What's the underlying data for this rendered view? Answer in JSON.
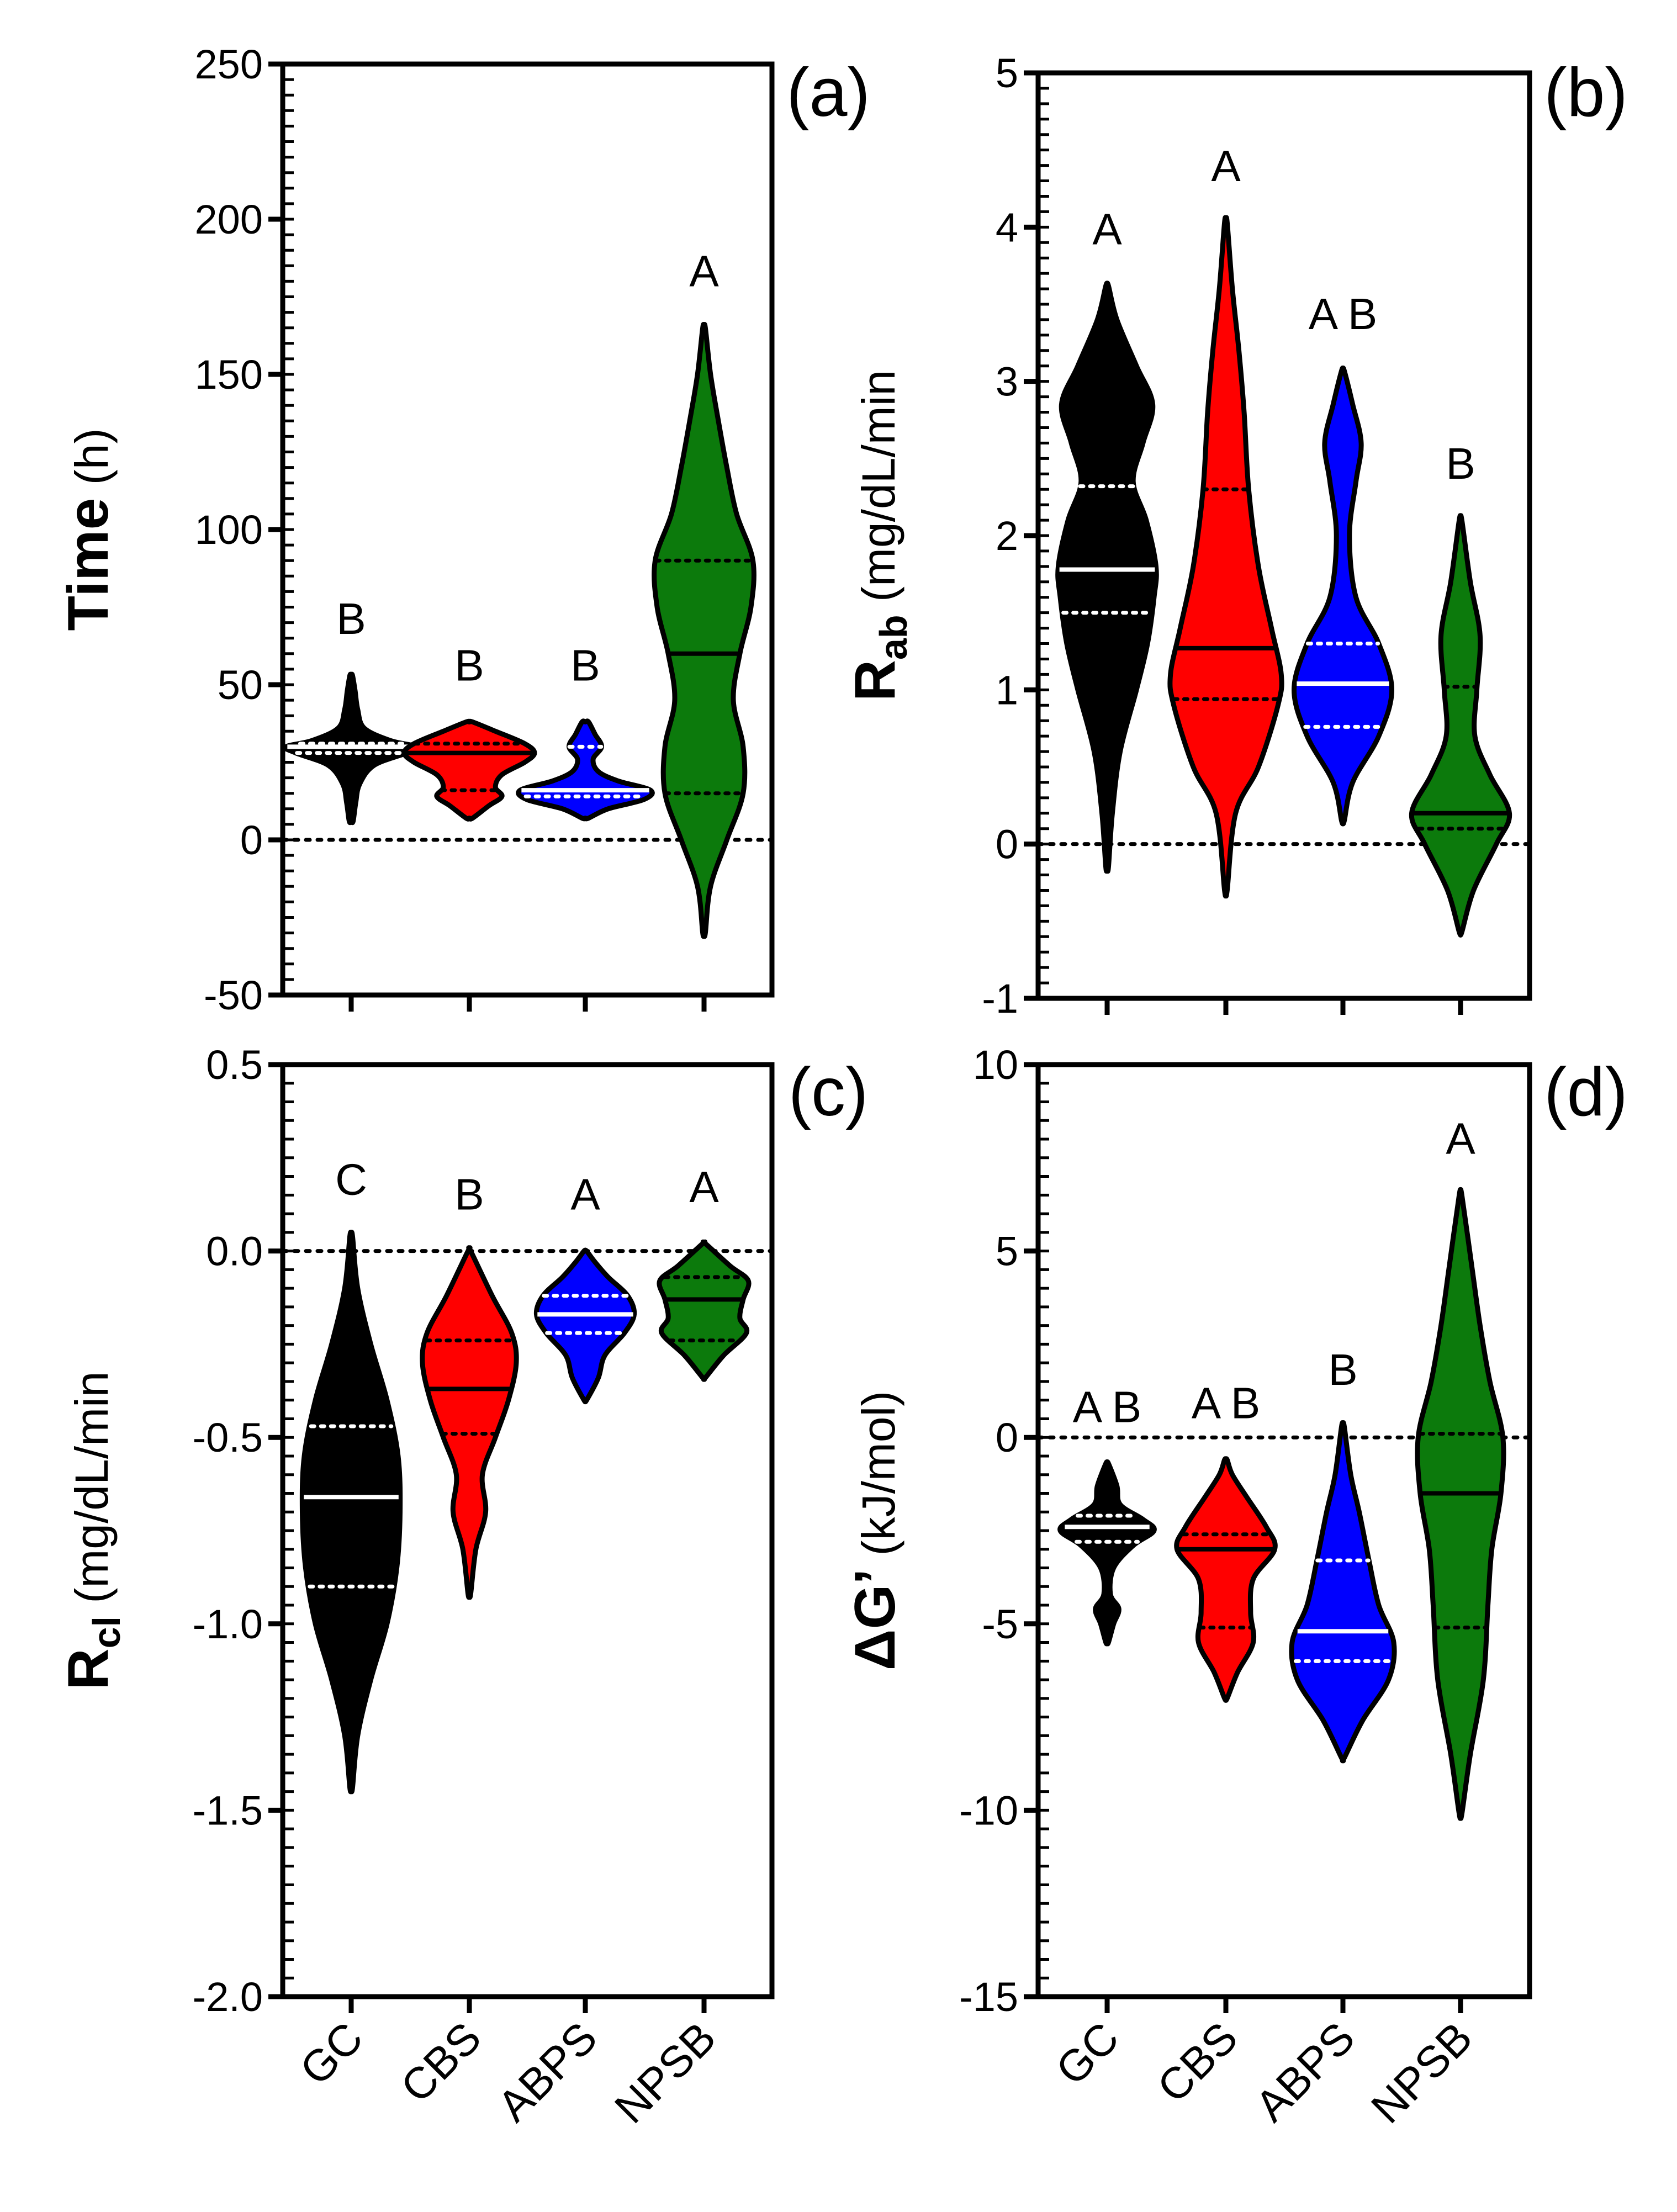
{
  "chart_data": [
    {
      "type": "violin",
      "panel_label": "(a)",
      "ylabel": {
        "main": "Time",
        "sub": "",
        "unit": " (h)"
      },
      "yticks": [
        "250",
        "200",
        "150",
        "100",
        "50",
        "0",
        "-50"
      ],
      "yticks_values": [
        250,
        200,
        150,
        100,
        50,
        0,
        -50
      ],
      "ylim": [
        -50,
        250
      ],
      "categories": [
        "GC",
        "CBS",
        "ABPS",
        "NPSB"
      ],
      "show_category_labels": false,
      "zero_line": true,
      "series": [
        {
          "name": "GC",
          "color": "#000000",
          "min": 6,
          "max": 53,
          "median": 30,
          "q1": 28,
          "q3": 31,
          "letter": "B",
          "profile": [
            [
              6,
              0.03
            ],
            [
              12,
              0.07
            ],
            [
              18,
              0.13
            ],
            [
              24,
              0.35
            ],
            [
              28,
              0.85
            ],
            [
              30,
              1.0
            ],
            [
              32,
              0.6
            ],
            [
              36,
              0.2
            ],
            [
              42,
              0.1
            ],
            [
              48,
              0.06
            ],
            [
              53,
              0.02
            ]
          ]
        },
        {
          "name": "CBS",
          "color": "#ff0000",
          "min": 7,
          "max": 38,
          "median": 28,
          "q1": 16,
          "q3": 31,
          "letter": "B",
          "profile": [
            [
              7,
              0.05
            ],
            [
              11,
              0.3
            ],
            [
              14,
              0.5
            ],
            [
              17,
              0.4
            ],
            [
              21,
              0.5
            ],
            [
              25,
              0.85
            ],
            [
              28,
              1.0
            ],
            [
              31,
              0.85
            ],
            [
              35,
              0.4
            ],
            [
              38,
              0.05
            ]
          ]
        },
        {
          "name": "ABPS",
          "color": "#0000ff",
          "min": 7,
          "max": 38,
          "median": 16,
          "q1": 14,
          "q3": 30,
          "letter": "B",
          "profile": [
            [
              7,
              0.05
            ],
            [
              10,
              0.35
            ],
            [
              13,
              0.9
            ],
            [
              16,
              1.0
            ],
            [
              19,
              0.5
            ],
            [
              22,
              0.2
            ],
            [
              26,
              0.12
            ],
            [
              30,
              0.25
            ],
            [
              34,
              0.15
            ],
            [
              38,
              0.05
            ]
          ]
        },
        {
          "name": "NPSB",
          "color": "#0c7a0c",
          "min": -30,
          "max": 165,
          "median": 60,
          "q1": 15,
          "q3": 90,
          "letter": "A",
          "profile": [
            [
              -30,
              0.02
            ],
            [
              -15,
              0.1
            ],
            [
              0,
              0.35
            ],
            [
              15,
              0.6
            ],
            [
              30,
              0.6
            ],
            [
              45,
              0.45
            ],
            [
              60,
              0.55
            ],
            [
              75,
              0.72
            ],
            [
              90,
              0.75
            ],
            [
              105,
              0.5
            ],
            [
              120,
              0.35
            ],
            [
              135,
              0.22
            ],
            [
              150,
              0.1
            ],
            [
              165,
              0.02
            ]
          ]
        }
      ]
    },
    {
      "type": "violin",
      "panel_label": "(b)",
      "ylabel": {
        "main": "R",
        "sub": "ab",
        "unit": " (mg/dL/min"
      },
      "yticks": [
        "5",
        "4",
        "3",
        "2",
        "1",
        "0",
        "-1"
      ],
      "yticks_values": [
        5,
        4,
        3,
        2,
        1,
        0,
        -1
      ],
      "ylim": [
        -1,
        5
      ],
      "categories": [
        "GC",
        "CBS",
        "ABPS",
        "NPSB"
      ],
      "show_category_labels": true,
      "zero_line": true,
      "series": [
        {
          "name": "GC",
          "color": "#000000",
          "min": -0.15,
          "max": 3.62,
          "median": 1.78,
          "q1": 1.5,
          "q3": 2.32,
          "letter": "A",
          "profile": [
            [
              -0.15,
              0.02
            ],
            [
              0.2,
              0.08
            ],
            [
              0.6,
              0.2
            ],
            [
              1.0,
              0.45
            ],
            [
              1.3,
              0.62
            ],
            [
              1.6,
              0.72
            ],
            [
              1.8,
              0.75
            ],
            [
              2.1,
              0.6
            ],
            [
              2.35,
              0.4
            ],
            [
              2.6,
              0.55
            ],
            [
              2.85,
              0.7
            ],
            [
              3.1,
              0.45
            ],
            [
              3.4,
              0.15
            ],
            [
              3.62,
              0.02
            ]
          ]
        },
        {
          "name": "CBS",
          "color": "#ff0000",
          "min": -0.3,
          "max": 4.03,
          "median": 1.27,
          "q1": 0.94,
          "q3": 2.3,
          "letter": "A",
          "profile": [
            [
              -0.3,
              0.02
            ],
            [
              0.2,
              0.15
            ],
            [
              0.5,
              0.5
            ],
            [
              0.9,
              0.8
            ],
            [
              1.1,
              0.85
            ],
            [
              1.4,
              0.7
            ],
            [
              1.8,
              0.5
            ],
            [
              2.3,
              0.35
            ],
            [
              2.8,
              0.28
            ],
            [
              3.2,
              0.2
            ],
            [
              3.6,
              0.1
            ],
            [
              4.03,
              0.02
            ]
          ]
        },
        {
          "name": "ABPS",
          "color": "#0000ff",
          "min": 0.15,
          "max": 3.07,
          "median": 1.04,
          "q1": 0.76,
          "q3": 1.3,
          "letter": "A B",
          "profile": [
            [
              0.15,
              0.02
            ],
            [
              0.4,
              0.15
            ],
            [
              0.7,
              0.55
            ],
            [
              1.0,
              0.75
            ],
            [
              1.3,
              0.55
            ],
            [
              1.6,
              0.2
            ],
            [
              2.0,
              0.1
            ],
            [
              2.35,
              0.2
            ],
            [
              2.6,
              0.28
            ],
            [
              2.85,
              0.15
            ],
            [
              3.07,
              0.02
            ]
          ]
        },
        {
          "name": "NPSB",
          "color": "#0c7a0c",
          "min": -0.57,
          "max": 2.1,
          "median": 0.2,
          "q1": 0.1,
          "q3": 1.02,
          "letter": "B",
          "profile": [
            [
              -0.57,
              0.02
            ],
            [
              -0.3,
              0.2
            ],
            [
              0,
              0.55
            ],
            [
              0.2,
              0.75
            ],
            [
              0.45,
              0.45
            ],
            [
              0.7,
              0.22
            ],
            [
              1.0,
              0.25
            ],
            [
              1.35,
              0.3
            ],
            [
              1.7,
              0.15
            ],
            [
              2.1,
              0.02
            ]
          ]
        }
      ]
    },
    {
      "type": "violin",
      "panel_label": "(c)",
      "ylabel": {
        "main": "R",
        "sub": "cl",
        "unit": " (mg/dL/min"
      },
      "yticks": [
        "0.5",
        "0.0",
        "-0.5",
        "-1.0",
        "-1.5",
        "-2.0"
      ],
      "yticks_values": [
        0.5,
        0.0,
        -0.5,
        -1.0,
        -1.5,
        -2.0
      ],
      "ylim": [
        -2.0,
        0.5
      ],
      "categories": [
        "GC",
        "CBS",
        "ABPS",
        "NPSB"
      ],
      "show_category_labels": true,
      "zero_line": true,
      "series": [
        {
          "name": "GC",
          "color": "#000000",
          "min": -1.44,
          "max": 0.04,
          "median": -0.66,
          "q1": -0.9,
          "q3": -0.47,
          "letter": "C",
          "profile": [
            [
              -1.44,
              0.02
            ],
            [
              -1.3,
              0.1
            ],
            [
              -1.15,
              0.3
            ],
            [
              -1.0,
              0.55
            ],
            [
              -0.85,
              0.7
            ],
            [
              -0.7,
              0.75
            ],
            [
              -0.55,
              0.72
            ],
            [
              -0.4,
              0.55
            ],
            [
              -0.25,
              0.3
            ],
            [
              -0.1,
              0.1
            ],
            [
              0.04,
              0.02
            ]
          ]
        },
        {
          "name": "CBS",
          "color": "#ff0000",
          "min": -0.92,
          "max": 0.0,
          "median": -0.37,
          "q1": -0.49,
          "q3": -0.24,
          "letter": "B",
          "profile": [
            [
              -0.92,
              0.02
            ],
            [
              -0.8,
              0.1
            ],
            [
              -0.7,
              0.25
            ],
            [
              -0.6,
              0.2
            ],
            [
              -0.5,
              0.4
            ],
            [
              -0.4,
              0.6
            ],
            [
              -0.3,
              0.72
            ],
            [
              -0.22,
              0.65
            ],
            [
              -0.12,
              0.35
            ],
            [
              0.0,
              0.02
            ]
          ]
        },
        {
          "name": "ABPS",
          "color": "#0000ff",
          "min": -0.4,
          "max": 0.0,
          "median": -0.17,
          "q1": -0.22,
          "q3": -0.12,
          "letter": "A",
          "profile": [
            [
              -0.4,
              0.02
            ],
            [
              -0.34,
              0.2
            ],
            [
              -0.28,
              0.3
            ],
            [
              -0.22,
              0.6
            ],
            [
              -0.17,
              0.75
            ],
            [
              -0.12,
              0.65
            ],
            [
              -0.07,
              0.35
            ],
            [
              -0.03,
              0.15
            ],
            [
              0.0,
              0.02
            ]
          ]
        },
        {
          "name": "NPSB",
          "color": "#0c7a0c",
          "min": -0.34,
          "max": 0.02,
          "median": -0.13,
          "q1": -0.24,
          "q3": -0.07,
          "letter": "A",
          "profile": [
            [
              -0.34,
              0.02
            ],
            [
              -0.28,
              0.3
            ],
            [
              -0.22,
              0.65
            ],
            [
              -0.18,
              0.55
            ],
            [
              -0.13,
              0.6
            ],
            [
              -0.08,
              0.68
            ],
            [
              -0.04,
              0.4
            ],
            [
              0.02,
              0.02
            ]
          ]
        }
      ]
    },
    {
      "type": "violin",
      "panel_label": "(d)",
      "ylabel": {
        "main": "ΔG’",
        "sub": "",
        "unit": " (kJ/mol)"
      },
      "yticks": [
        "10",
        "5",
        "0",
        "-5",
        "-10",
        "-15"
      ],
      "yticks_values": [
        10,
        5,
        0,
        -5,
        -10,
        -15
      ],
      "ylim": [
        -15,
        10
      ],
      "categories": [
        "GC",
        "CBS",
        "ABPS",
        "NPSB"
      ],
      "show_category_labels": true,
      "zero_line": true,
      "series": [
        {
          "name": "GC",
          "color": "#000000",
          "min": -5.5,
          "max": -0.7,
          "median": -2.4,
          "q1": -2.8,
          "q3": -2.1,
          "letter": "A B",
          "profile": [
            [
              -5.5,
              0.02
            ],
            [
              -5.0,
              0.1
            ],
            [
              -4.6,
              0.18
            ],
            [
              -4.2,
              0.05
            ],
            [
              -3.5,
              0.1
            ],
            [
              -2.9,
              0.4
            ],
            [
              -2.5,
              0.72
            ],
            [
              -2.2,
              0.55
            ],
            [
              -1.8,
              0.2
            ],
            [
              -1.3,
              0.15
            ],
            [
              -0.7,
              0.02
            ]
          ]
        },
        {
          "name": "CBS",
          "color": "#ff0000",
          "min": -7.0,
          "max": -0.6,
          "median": -3.0,
          "q1": -5.1,
          "q3": -2.6,
          "letter": "A B",
          "profile": [
            [
              -7.0,
              0.02
            ],
            [
              -6.3,
              0.18
            ],
            [
              -5.5,
              0.42
            ],
            [
              -4.7,
              0.38
            ],
            [
              -3.8,
              0.42
            ],
            [
              -3.0,
              0.75
            ],
            [
              -2.4,
              0.62
            ],
            [
              -1.6,
              0.32
            ],
            [
              -1.0,
              0.1
            ],
            [
              -0.6,
              0.02
            ]
          ]
        },
        {
          "name": "ABPS",
          "color": "#0000ff",
          "min": -8.6,
          "max": 0.3,
          "median": -5.2,
          "q1": -6.0,
          "q3": -3.3,
          "letter": "B",
          "profile": [
            [
              -8.6,
              0.02
            ],
            [
              -7.6,
              0.3
            ],
            [
              -6.5,
              0.7
            ],
            [
              -5.5,
              0.78
            ],
            [
              -4.5,
              0.55
            ],
            [
              -3.3,
              0.4
            ],
            [
              -2.0,
              0.25
            ],
            [
              -1.0,
              0.12
            ],
            [
              0.3,
              0.02
            ]
          ]
        },
        {
          "name": "NPSB",
          "color": "#0c7a0c",
          "min": -10.1,
          "max": 6.5,
          "median": -1.5,
          "q1": -5.1,
          "q3": 0.1,
          "letter": "A",
          "profile": [
            [
              -10.1,
              0.02
            ],
            [
              -8.5,
              0.15
            ],
            [
              -6.5,
              0.35
            ],
            [
              -4.5,
              0.42
            ],
            [
              -3.0,
              0.48
            ],
            [
              -1.5,
              0.62
            ],
            [
              0,
              0.65
            ],
            [
              1.5,
              0.45
            ],
            [
              3.0,
              0.3
            ],
            [
              4.5,
              0.18
            ],
            [
              6.5,
              0.02
            ]
          ]
        }
      ]
    }
  ]
}
